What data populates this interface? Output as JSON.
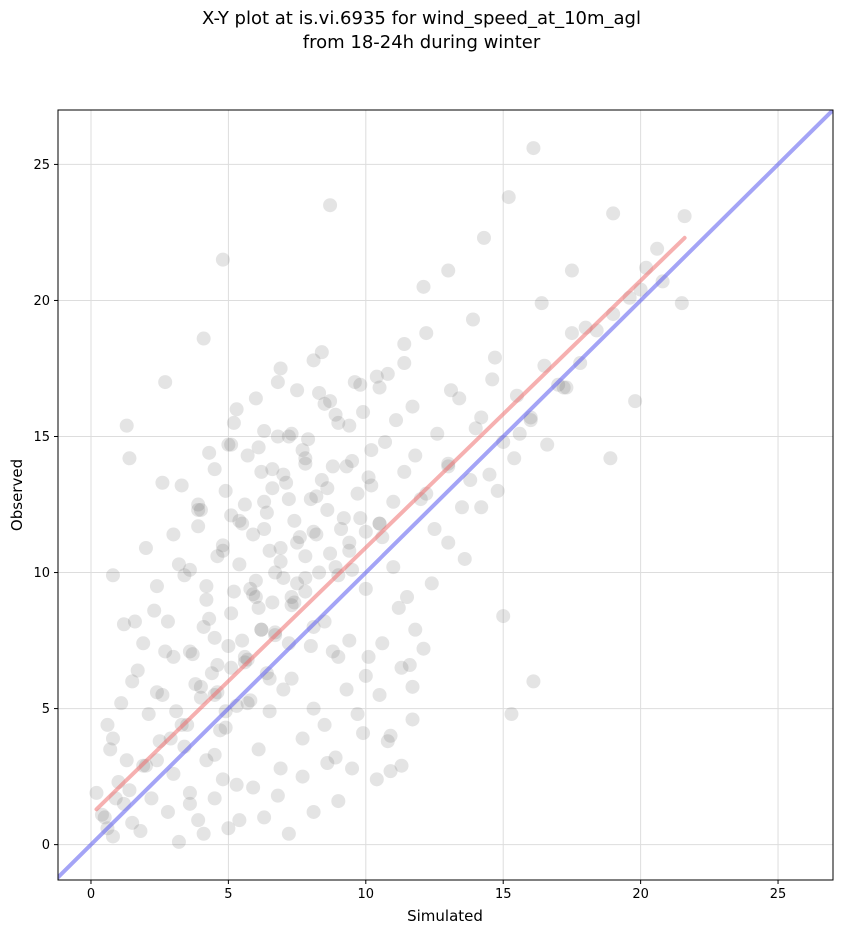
{
  "chart_data": {
    "type": "scatter",
    "title_line1": "X-Y plot at is.vi.6935 for wind_speed_at_10m_agl",
    "title_line2": "from 18-24h during winter",
    "xlabel": "Simulated",
    "ylabel": "Observed",
    "xlim": [
      -1.2,
      27.0
    ],
    "ylim": [
      -1.3,
      27.0
    ],
    "xticks": [
      0,
      5,
      10,
      15,
      20,
      25
    ],
    "yticks": [
      0,
      5,
      10,
      15,
      20,
      25
    ],
    "grid": true,
    "colors": {
      "points": "#555555",
      "fit_line": "#ef6f6f",
      "identity_line": "#5a5aef"
    },
    "fit_line": {
      "x": [
        0.2,
        21.6
      ],
      "y": [
        1.3,
        22.3
      ]
    },
    "identity_line": {
      "x": [
        -1.2,
        27.0
      ],
      "y": [
        -1.2,
        27.0
      ]
    },
    "points": {
      "x": [
        0.2,
        0.4,
        0.6,
        0.8,
        0.7,
        1.0,
        1.2,
        1.5,
        1.8,
        2.0,
        2.2,
        2.5,
        2.8,
        3.0,
        3.3,
        3.6,
        3.9,
        4.2,
        4.5,
        4.8,
        0.6,
        0.8,
        1.1,
        1.3,
        1.7,
        2.1,
        2.4,
        2.7,
        3.1,
        3.4,
        3.8,
        4.1,
        4.4,
        4.7,
        5.0,
        5.3,
        5.6,
        5.9,
        6.2,
        6.5,
        1.2,
        1.5,
        1.9,
        2.3,
        2.6,
        3.0,
        3.4,
        3.7,
        4.0,
        4.3,
        4.6,
        4.9,
        5.2,
        5.5,
        5.8,
        6.1,
        6.4,
        6.7,
        7.0,
        7.3,
        2.0,
        2.4,
        2.8,
        3.2,
        3.6,
        3.9,
        4.2,
        4.5,
        4.8,
        5.1,
        5.4,
        5.7,
        6.0,
        6.3,
        6.6,
        6.9,
        7.2,
        7.5,
        7.8,
        8.1,
        3.0,
        3.3,
        3.6,
        3.9,
        4.2,
        4.5,
        4.8,
        5.1,
        5.4,
        5.7,
        6.0,
        6.3,
        6.6,
        6.9,
        7.2,
        7.5,
        7.8,
        8.1,
        8.4,
        8.7,
        4.0,
        4.3,
        4.6,
        4.9,
        5.2,
        5.5,
        5.8,
        6.1,
        6.4,
        6.7,
        7.0,
        7.3,
        7.6,
        7.9,
        8.2,
        8.5,
        8.8,
        9.1,
        9.4,
        9.7,
        5.0,
        5.3,
        5.6,
        5.9,
        6.2,
        6.5,
        6.8,
        7.1,
        7.4,
        7.7,
        8.0,
        8.3,
        8.6,
        8.9,
        9.2,
        9.5,
        9.8,
        10.1,
        10.4,
        10.7,
        6.0,
        6.3,
        6.6,
        6.9,
        7.2,
        7.5,
        7.8,
        8.1,
        8.4,
        8.7,
        9.0,
        9.3,
        9.6,
        9.9,
        10.2,
        10.5,
        10.8,
        11.1,
        11.4,
        11.7,
        7.0,
        7.4,
        7.8,
        8.2,
        8.6,
        9.0,
        9.4,
        9.8,
        10.2,
        10.6,
        11.0,
        11.4,
        11.8,
        12.2,
        12.6,
        13.0,
        13.4,
        13.8,
        14.2,
        14.6,
        8.0,
        8.5,
        9.0,
        9.5,
        10.0,
        10.5,
        11.0,
        11.5,
        12.0,
        12.5,
        13.0,
        13.5,
        14.0,
        14.5,
        15.0,
        15.5,
        16.0,
        16.5,
        17.0,
        17.5,
        10.0,
        10.6,
        11.2,
        11.8,
        12.4,
        13.0,
        13.6,
        14.2,
        14.8,
        15.4,
        16.0,
        16.6,
        17.2,
        17.8,
        18.4,
        19.0,
        19.6,
        20.2,
        20.8,
        21.5,
        4.8,
        6.8,
        8.7,
        2.7,
        1.3,
        1.4,
        4.1,
        3.9,
        5.1,
        0.8,
        1.6,
        2.6,
        16.1,
        13.0,
        15.2,
        14.3,
        17.5,
        19.0,
        20.6,
        12.1,
        16.1,
        15.0,
        15.3,
        11.6,
        9.4,
        8.8,
        10.9,
        21.6,
        20.0,
        19.8,
        18.9,
        18.0,
        17.3,
        16.4,
        15.6,
        14.7,
        13.9,
        13.1,
        12.2,
        11.4,
        3.2,
        3.6,
        4.1,
        4.5,
        5.0,
        5.4,
        5.9,
        6.3,
        6.8,
        7.2,
        7.7,
        8.1,
        8.6,
        9.0,
        9.5,
        9.9,
        10.4,
        10.8,
        11.3,
        11.7,
        4.5,
        4.9,
        5.3,
        5.7,
        6.1,
        6.5,
        6.9,
        7.3,
        7.7,
        8.1,
        8.5,
        8.9,
        9.3,
        9.7,
        10.1,
        10.5,
        10.9,
        11.3,
        11.7,
        12.1,
        0.5,
        0.9,
        1.4,
        1.9,
        2.4,
        2.9,
        3.5,
        4.0,
        4.6,
        5.1,
        5.6,
        6.2,
        6.7,
        7.3,
        7.8,
        8.3,
        8.9,
        9.4,
        10.0,
        10.5
      ],
      "y": [
        1.9,
        1.1,
        0.6,
        0.3,
        3.5,
        2.3,
        1.5,
        0.8,
        0.5,
        2.9,
        1.7,
        3.8,
        1.2,
        2.6,
        4.4,
        1.9,
        0.9,
        3.1,
        5.5,
        2.4,
        4.4,
        3.9,
        5.2,
        3.1,
        6.4,
        4.8,
        5.6,
        7.1,
        4.9,
        3.6,
        5.9,
        8.0,
        6.3,
        4.2,
        7.3,
        5.1,
        6.7,
        9.2,
        7.9,
        6.1,
        8.1,
        6.0,
        7.4,
        8.6,
        5.5,
        6.9,
        9.9,
        7.0,
        5.8,
        8.3,
        6.6,
        4.9,
        9.3,
        7.5,
        5.3,
        8.7,
        6.3,
        7.8,
        5.7,
        9.1,
        10.9,
        9.5,
        8.2,
        10.3,
        7.1,
        11.7,
        9.0,
        7.6,
        10.8,
        8.5,
        11.9,
        6.8,
        9.7,
        12.6,
        8.9,
        10.4,
        7.4,
        11.1,
        9.8,
        8.0,
        11.4,
        13.2,
        10.1,
        12.5,
        9.5,
        13.8,
        11.0,
        12.1,
        10.3,
        14.3,
        9.1,
        11.6,
        13.1,
        10.9,
        12.7,
        9.6,
        14.0,
        11.5,
        13.4,
        10.7,
        12.3,
        14.4,
        10.6,
        13.0,
        15.5,
        11.8,
        9.4,
        14.6,
        12.2,
        10.0,
        13.6,
        15.1,
        11.3,
        14.9,
        12.8,
        16.2,
        13.9,
        11.6,
        15.4,
        12.9,
        14.7,
        16.0,
        12.5,
        11.4,
        13.7,
        10.8,
        15.0,
        13.3,
        11.9,
        14.5,
        12.7,
        16.6,
        13.1,
        15.8,
        12.0,
        14.1,
        16.9,
        13.5,
        17.2,
        14.8,
        16.4,
        15.2,
        13.8,
        17.5,
        15.0,
        16.7,
        14.2,
        17.8,
        18.1,
        16.3,
        15.5,
        13.9,
        17.0,
        15.9,
        14.5,
        16.8,
        17.3,
        15.6,
        18.4,
        16.1,
        9.8,
        8.9,
        10.6,
        11.4,
        12.3,
        9.9,
        10.8,
        12.0,
        13.2,
        11.3,
        12.6,
        13.7,
        14.3,
        12.9,
        15.1,
        14.0,
        16.4,
        13.4,
        15.7,
        17.1,
        7.3,
        8.2,
        6.9,
        10.1,
        9.4,
        11.8,
        10.2,
        9.1,
        12.7,
        11.6,
        13.9,
        12.4,
        15.3,
        13.6,
        14.8,
        16.5,
        15.7,
        17.6,
        16.9,
        18.8,
        6.2,
        7.4,
        8.7,
        7.9,
        9.6,
        11.1,
        10.5,
        12.4,
        13.0,
        14.2,
        15.6,
        14.7,
        16.8,
        17.7,
        18.9,
        19.5,
        20.1,
        21.2,
        20.7,
        19.9,
        21.5,
        17.0,
        23.5,
        17.0,
        15.4,
        14.2,
        18.6,
        12.3,
        14.7,
        9.9,
        8.2,
        13.3,
        25.6,
        21.1,
        23.8,
        22.3,
        21.1,
        23.2,
        21.9,
        20.5,
        6.0,
        8.4,
        4.8,
        6.6,
        7.5,
        7.1,
        2.7,
        23.1,
        20.4,
        16.3,
        14.2,
        19.0,
        16.8,
        19.9,
        15.1,
        17.9,
        19.3,
        16.7,
        18.8,
        17.7,
        0.1,
        1.5,
        0.4,
        1.7,
        0.6,
        0.9,
        2.1,
        1.0,
        1.8,
        0.4,
        2.5,
        1.2,
        3.0,
        1.6,
        2.8,
        4.1,
        2.4,
        3.8,
        2.9,
        4.6,
        3.3,
        4.3,
        2.2,
        5.2,
        3.5,
        4.9,
        2.8,
        6.1,
        3.9,
        5.0,
        4.4,
        3.2,
        5.7,
        4.8,
        6.9,
        5.5,
        4.0,
        6.5,
        5.8,
        7.2,
        1.0,
        1.7,
        2.0,
        2.9,
        3.1,
        3.9,
        4.4,
        5.4,
        5.6,
        6.5,
        6.9,
        7.9,
        7.7,
        8.8,
        9.3,
        10.0,
        10.2,
        11.1,
        11.5,
        11.8
      ]
    }
  }
}
